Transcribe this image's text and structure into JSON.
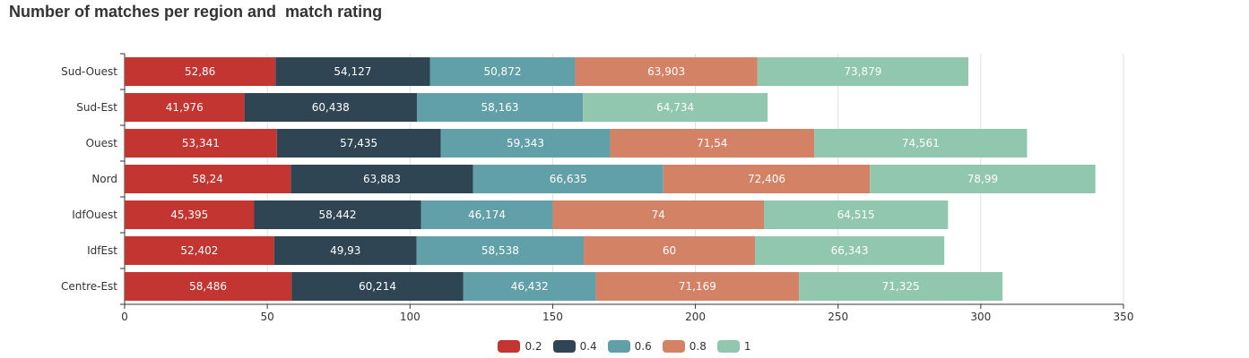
{
  "chart_data": {
    "type": "bar",
    "orientation": "horizontal",
    "stacked": true,
    "title": "Number of matches per region and  match rating",
    "categories": [
      "Sud-Ouest",
      "Sud-Est",
      "Ouest",
      "Nord",
      "IdfOuest",
      "IdfEst",
      "Centre-Est"
    ],
    "series": [
      {
        "name": "0.2",
        "color": "#c23531",
        "values": [
          52.86,
          41.976,
          53.341,
          58.24,
          45.395,
          52.402,
          58.486
        ],
        "labels": [
          "52,86",
          "41,976",
          "53,341",
          "58,24",
          "45,395",
          "52,402",
          "58,486"
        ]
      },
      {
        "name": "0.4",
        "color": "#2f4554",
        "values": [
          54.127,
          60.438,
          57.435,
          63.883,
          58.442,
          49.93,
          60.214
        ],
        "labels": [
          "54,127",
          "60,438",
          "57,435",
          "63,883",
          "58,442",
          "49,93",
          "60,214"
        ]
      },
      {
        "name": "0.6",
        "color": "#61a0a8",
        "values": [
          50.872,
          58.163,
          59.343,
          66.635,
          46.174,
          58.538,
          46.432
        ],
        "labels": [
          "50,872",
          "58,163",
          "59,343",
          "66,635",
          "46,174",
          "58,538",
          "46,432"
        ]
      },
      {
        "name": "0.8",
        "color": "#d48265",
        "values": [
          63.903,
          0,
          71.54,
          72.406,
          74,
          60,
          71.169
        ],
        "labels": [
          "63,903",
          "",
          "71,54",
          "72,406",
          "74",
          "60",
          "71,169"
        ]
      },
      {
        "name": "1",
        "color": "#91c7ae",
        "values": [
          73.879,
          64.734,
          74.561,
          78.99,
          64.515,
          66.343,
          71.325
        ],
        "labels": [
          "73,879",
          "64,734",
          "74,561",
          "78,99",
          "64,515",
          "66,343",
          "71,325"
        ]
      }
    ],
    "xaxis": {
      "range": [
        0,
        350
      ],
      "ticks": [
        "0",
        "50",
        "100",
        "150",
        "200",
        "250",
        "300",
        "350"
      ]
    },
    "grid": true,
    "legend_position": "bottom-center",
    "label_color": "#ffffff"
  }
}
